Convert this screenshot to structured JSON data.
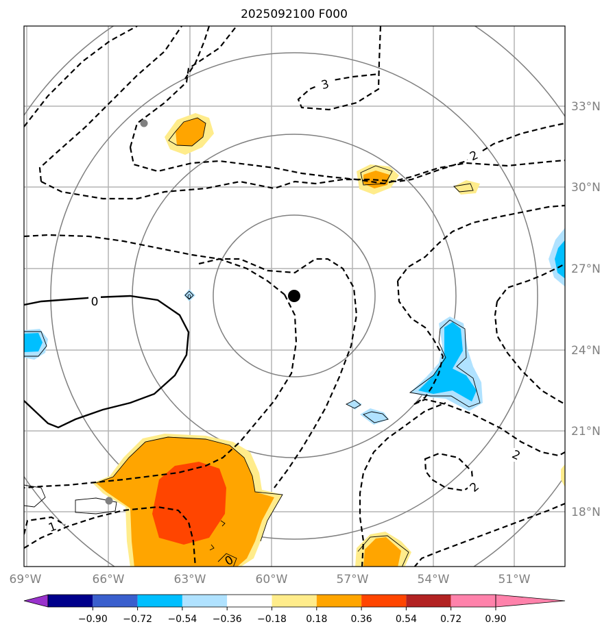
{
  "title": "2025092100 F000",
  "map": {
    "lon_ticks": [
      "69°W",
      "66°W",
      "63°W",
      "60°W",
      "57°W",
      "54°W",
      "51°W"
    ],
    "lat_ticks": [
      "33°N",
      "30°N",
      "27°N",
      "24°N",
      "21°N",
      "18°N"
    ],
    "contour_labels": [
      "3",
      "2",
      "2",
      "2",
      "0",
      "0",
      "1",
      "0"
    ],
    "center_marker": "storm-center"
  },
  "colorbar": {
    "levels": [
      "−0.90",
      "−0.72",
      "−0.54",
      "−0.36",
      "−0.18",
      "0.18",
      "0.36",
      "0.54",
      "0.72",
      "0.90"
    ],
    "colors": [
      "#9932cc",
      "#00008b",
      "#3a5fcd",
      "#00bfff",
      "#b0e2ff",
      "#ffffff",
      "#ffec8b",
      "#ffa500",
      "#ff4500",
      "#b22222",
      "#ff82ab"
    ]
  }
}
